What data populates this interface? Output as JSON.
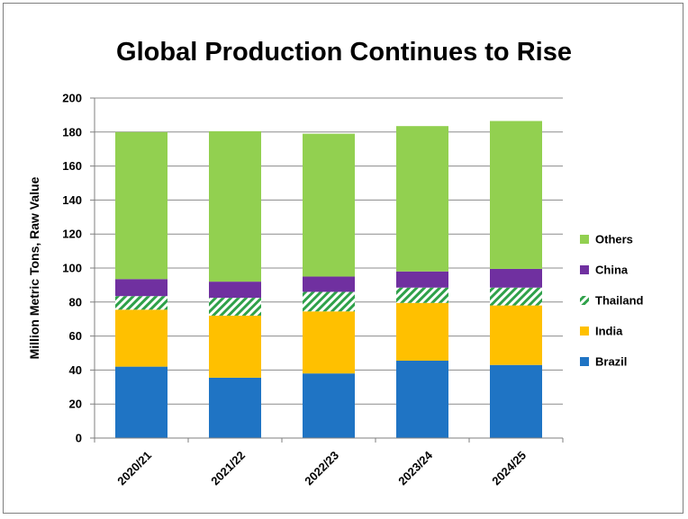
{
  "chart_data": {
    "type": "bar",
    "stacked": true,
    "title": "Global Production Continues to Rise",
    "xlabel": "",
    "ylabel": "Million Metric Tons, Raw Value",
    "ylim": [
      0,
      200
    ],
    "ytick_step": 20,
    "grid": true,
    "legend_position": "right",
    "categories": [
      "2020/21",
      "2021/22",
      "2022/23",
      "2023/24",
      "2024/25"
    ],
    "series": [
      {
        "name": "Brazil",
        "color": "#1f74c4",
        "pattern": "solid",
        "values": [
          42,
          35.5,
          38,
          45.5,
          43
        ]
      },
      {
        "name": "India",
        "color": "#ffc000",
        "pattern": "solid",
        "values": [
          33.5,
          36.5,
          36.5,
          34,
          35
        ]
      },
      {
        "name": "Thailand",
        "color": "#2fa14a",
        "pattern": "hatched",
        "values": [
          8,
          10.5,
          11.5,
          9,
          10.5
        ]
      },
      {
        "name": "China",
        "color": "#7030a0",
        "pattern": "solid",
        "values": [
          10,
          9.5,
          9,
          9.5,
          11
        ]
      },
      {
        "name": "Others",
        "color": "#92d050",
        "pattern": "solid",
        "values": [
          86.5,
          88.5,
          84,
          85.5,
          87
        ]
      }
    ]
  }
}
